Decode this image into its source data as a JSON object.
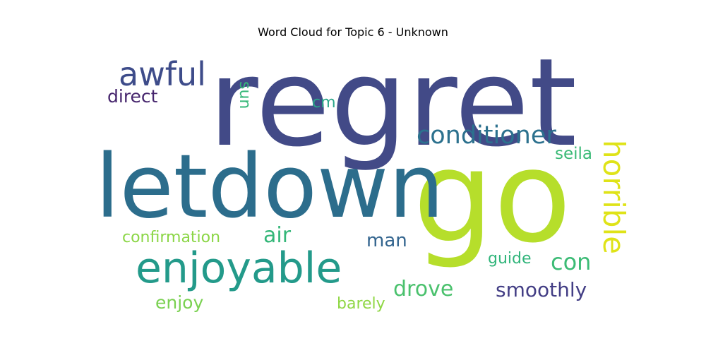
{
  "title": "Word Cloud for Topic 6 - Unknown",
  "words": {
    "regret": {
      "text": "regret",
      "color": "#424a87"
    },
    "go": {
      "text": "go",
      "color": "#b6de2b"
    },
    "letdown": {
      "text": "letdown",
      "color": "#2c6d8c"
    },
    "enjoyable": {
      "text": "enjoyable",
      "color": "#239a8a"
    },
    "awful": {
      "text": "awful",
      "color": "#3e4c8a"
    },
    "conditioner": {
      "text": "conditioner",
      "color": "#2c718e"
    },
    "horrible": {
      "text": "horrible",
      "color": "#dfe318"
    },
    "direct": {
      "text": "direct",
      "color": "#46256d"
    },
    "sun": {
      "text": "sun",
      "color": "#35b778"
    },
    "cm": {
      "text": "cm",
      "color": "#2aa689"
    },
    "seila": {
      "text": "seila",
      "color": "#3aba76"
    },
    "confirmation": {
      "text": "confirmation",
      "color": "#8bd646"
    },
    "air": {
      "text": "air",
      "color": "#35b779"
    },
    "man": {
      "text": "man",
      "color": "#32648e"
    },
    "con": {
      "text": "con",
      "color": "#3bbb75"
    },
    "guide": {
      "text": "guide",
      "color": "#31b57b"
    },
    "smoothly": {
      "text": "smoothly",
      "color": "#433e85"
    },
    "drove": {
      "text": "drove",
      "color": "#4ac16d"
    },
    "enjoy": {
      "text": "enjoy",
      "color": "#7ad151"
    },
    "barely": {
      "text": "barely",
      "color": "#8fd744"
    }
  }
}
